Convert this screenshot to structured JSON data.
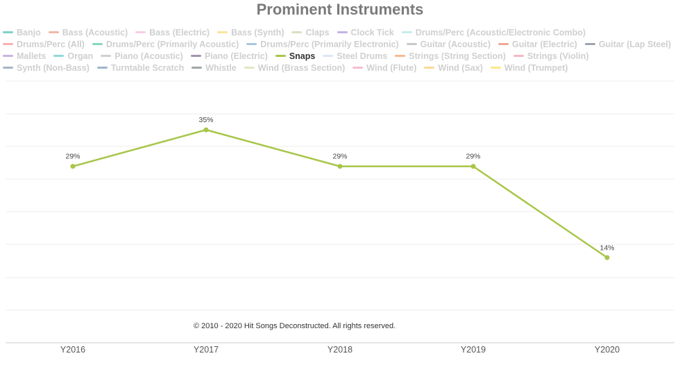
{
  "chart_data": {
    "type": "line",
    "title": "Prominent Instruments",
    "categories": [
      "Y2016",
      "Y2017",
      "Y2018",
      "Y2019",
      "Y2020"
    ],
    "series": [
      {
        "name": "Snaps",
        "values": [
          29,
          35,
          29,
          29,
          14
        ],
        "labels": [
          "29%",
          "35%",
          "29%",
          "29%",
          "14%"
        ],
        "color": "#a8c64a"
      }
    ],
    "ylim": [
      0,
      43
    ],
    "grid": true,
    "legend_position": "top",
    "legend": [
      {
        "name": "Banjo",
        "color": "#7fd3c8"
      },
      {
        "name": "Bass (Acoustic)",
        "color": "#f2b7a6"
      },
      {
        "name": "Bass (Electric)",
        "color": "#f7cde6"
      },
      {
        "name": "Bass (Synth)",
        "color": "#fbe49c"
      },
      {
        "name": "Claps",
        "color": "#d9e0c0"
      },
      {
        "name": "Clock Tick",
        "color": "#c3b1e1"
      },
      {
        "name": "Drums/Perc (Acoustic/Electronic Combo)",
        "color": "#c6ecec"
      },
      {
        "name": "Drums/Perc (All)",
        "color": "#f7b1b1"
      },
      {
        "name": "Drums/Perc (Primarily Acoustic)",
        "color": "#86d6c0"
      },
      {
        "name": "Drums/Perc (Primarily Electronic)",
        "color": "#a9c6dc"
      },
      {
        "name": "Guitar (Acoustic)",
        "color": "#c9c9c9"
      },
      {
        "name": "Guitar (Electric)",
        "color": "#efa79a"
      },
      {
        "name": "Guitar (Lap Steel)",
        "color": "#9ea4ad"
      },
      {
        "name": "Mallets",
        "color": "#c8b4de"
      },
      {
        "name": "Organ",
        "color": "#8fd7d7"
      },
      {
        "name": "Piano (Acoustic)",
        "color": "#cfcfcf"
      },
      {
        "name": "Piano (Electric)",
        "color": "#a394ab"
      },
      {
        "name": "Snaps",
        "color": "#a8c64a",
        "active": true
      },
      {
        "name": "Steel Drums",
        "color": "#dde5f2"
      },
      {
        "name": "Strings (String Section)",
        "color": "#f5bb8f"
      },
      {
        "name": "Strings (Violin)",
        "color": "#f6b7c3"
      },
      {
        "name": "Synth (Non-Bass)",
        "color": "#a7b7c5"
      },
      {
        "name": "Turntable Scratch",
        "color": "#9fb4cb"
      },
      {
        "name": "Whistle",
        "color": "#a0a8a4"
      },
      {
        "name": "Wind (Brass Section)",
        "color": "#e2e8c4"
      },
      {
        "name": "Wind (Flute)",
        "color": "#f5bdd4"
      },
      {
        "name": "Wind (Sax)",
        "color": "#fbd79a"
      },
      {
        "name": "Wind (Trumpet)",
        "color": "#fbe889"
      }
    ]
  },
  "copyright": "© 2010 - 2020 Hit Songs Deconstructed. All rights reserved."
}
